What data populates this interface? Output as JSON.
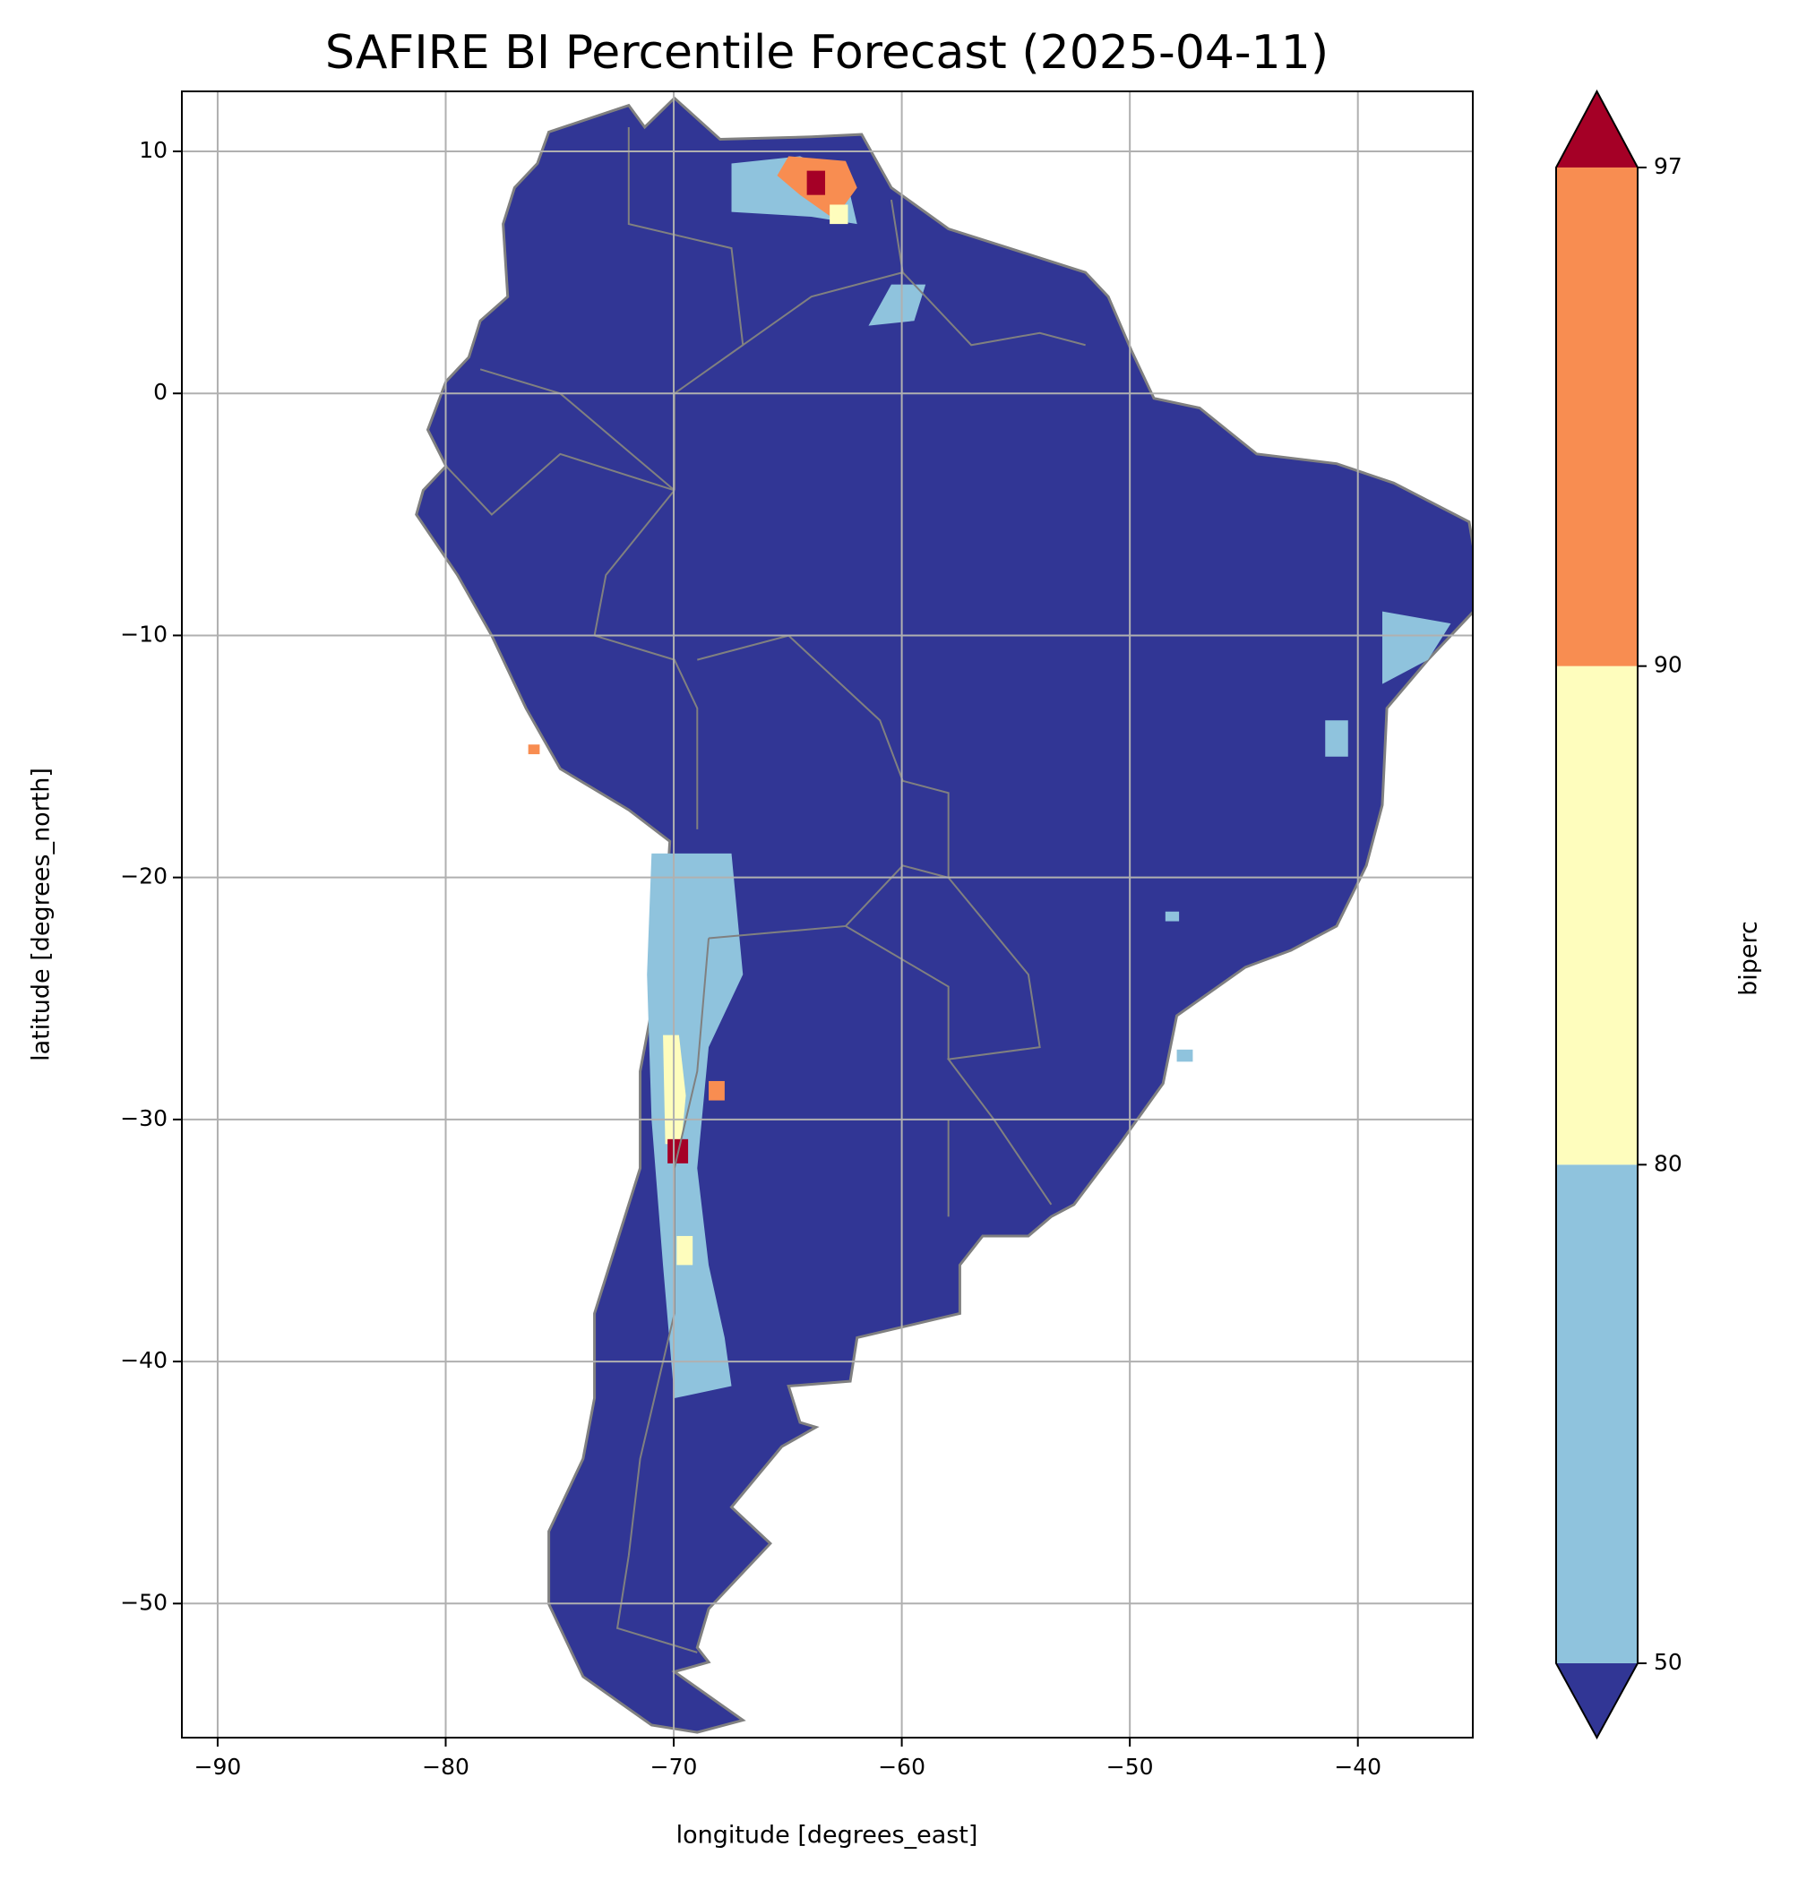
{
  "chart_data": {
    "type": "map",
    "title": "SAFIRE BI Percentile Forecast (2025-04-11)",
    "x_label": "longitude [degrees_east]",
    "y_label": "latitude [degrees_north]",
    "xlim": [
      -91.57,
      -34.96
    ],
    "ylim": [
      -55.54,
      12.48
    ],
    "xticks": [
      {
        "value": -90,
        "label": "−90"
      },
      {
        "value": -80,
        "label": "−80"
      },
      {
        "value": -70,
        "label": "−70"
      },
      {
        "value": -60,
        "label": "−60"
      },
      {
        "value": -50,
        "label": "−50"
      },
      {
        "value": -40,
        "label": "−40"
      }
    ],
    "yticks": [
      10,
      0,
      {
        "value": -10,
        "label": "−10"
      },
      {
        "value": -20,
        "label": "−20"
      },
      {
        "value": -30,
        "label": "−30"
      },
      {
        "value": -40,
        "label": "−40"
      },
      {
        "value": -50,
        "label": "−50"
      }
    ],
    "grid": true,
    "land_color": "#313695",
    "border_color": "#808080",
    "colorbar": {
      "label": "biperc",
      "boundaries": [
        50,
        80,
        90,
        97
      ],
      "colors": [
        "#8fc3dd",
        "#fefdbd",
        "#f88d51"
      ],
      "under_color": "#313695",
      "over_color": "#a50026"
    }
  }
}
